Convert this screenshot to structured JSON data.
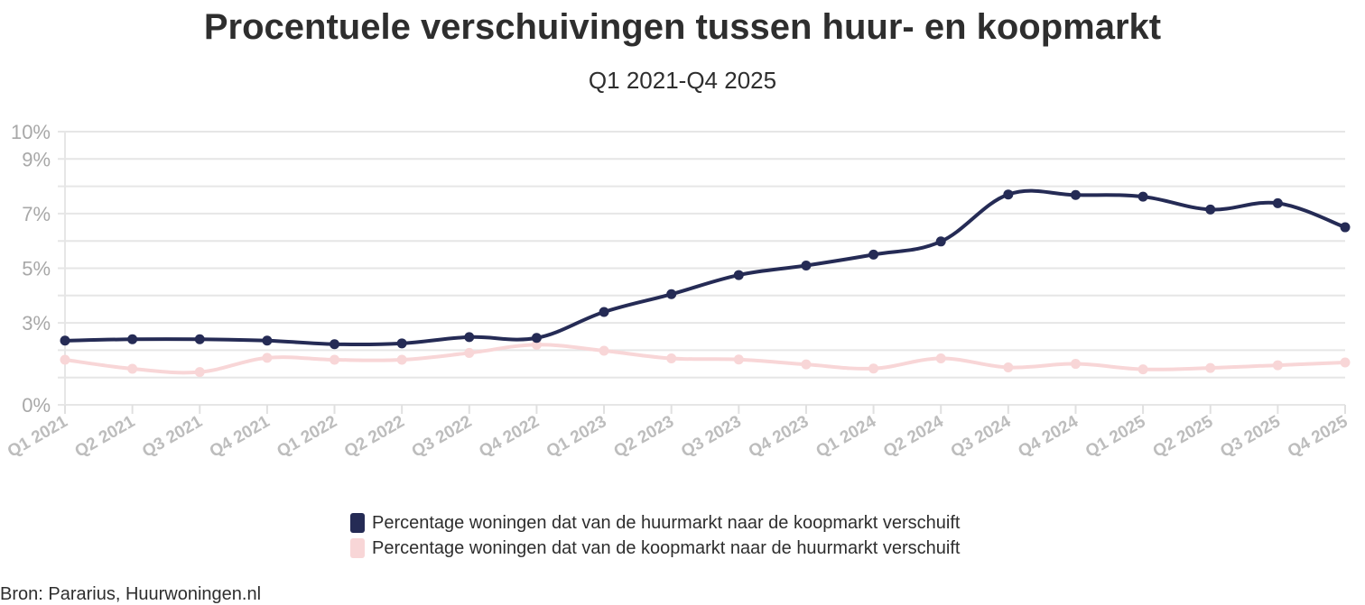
{
  "chart_data": {
    "type": "line",
    "title": "Procentuele verschuivingen tussen huur- en koopmarkt",
    "subtitle": "Q1 2021-Q4 2025",
    "source": "Bron: Pararius, Huurwoningen.nl",
    "categories": [
      "Q1 2021",
      "Q2 2021",
      "Q3 2021",
      "Q4 2021",
      "Q1 2022",
      "Q2 2022",
      "Q3 2022",
      "Q4 2022",
      "Q1 2023",
      "Q2 2023",
      "Q3 2023",
      "Q4 2023",
      "Q1 2024",
      "Q2 2024",
      "Q3 2024",
      "Q4 2024",
      "Q1 2025",
      "Q2 2025",
      "Q3 2025",
      "Q4 2025"
    ],
    "y_ticks": [
      {
        "value": 0,
        "label": "0%"
      },
      {
        "value": 3,
        "label": "3%"
      },
      {
        "value": 5,
        "label": "5%"
      },
      {
        "value": 7,
        "label": "7%"
      },
      {
        "value": 9,
        "label": "9%"
      },
      {
        "value": 10,
        "label": "10%"
      }
    ],
    "gridlines": [
      0,
      1,
      2,
      3,
      4,
      5,
      6,
      7,
      8,
      9,
      10
    ],
    "ylim": [
      0,
      10
    ],
    "grid": true,
    "legend_position": "bottom",
    "series": [
      {
        "name": "Percentage woningen dat van de huurmarkt naar de koopmarkt verschuift",
        "color": "#252b55",
        "values": [
          2.35,
          2.4,
          2.4,
          2.35,
          2.22,
          2.25,
          2.48,
          2.45,
          3.4,
          4.05,
          4.75,
          5.1,
          5.5,
          5.98,
          7.7,
          7.68,
          7.62,
          7.15,
          7.38,
          6.5
        ]
      },
      {
        "name": "Percentage woningen dat van de koopmarkt naar de huurmarkt verschuift",
        "color": "#f8d6d7",
        "values": [
          1.65,
          1.32,
          1.2,
          1.72,
          1.65,
          1.65,
          1.9,
          2.2,
          1.98,
          1.7,
          1.66,
          1.48,
          1.33,
          1.7,
          1.37,
          1.5,
          1.3,
          1.35,
          1.45,
          1.55
        ]
      }
    ]
  }
}
